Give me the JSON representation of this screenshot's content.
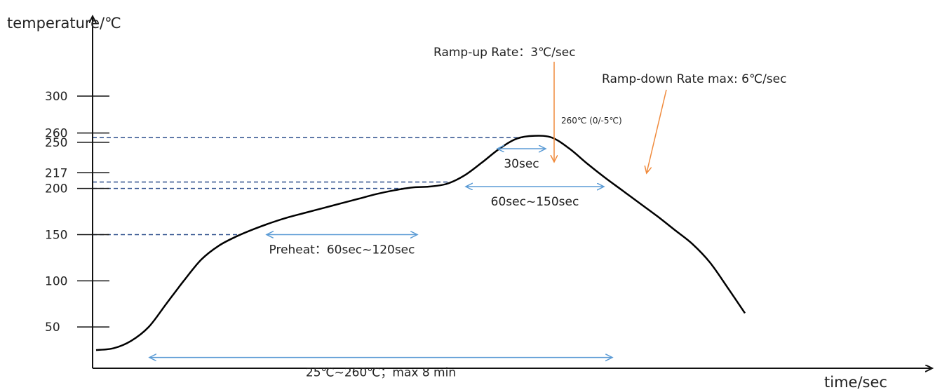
{
  "chart_data": {
    "type": "line",
    "title": "",
    "xlabel": "time/sec",
    "ylabel": "temperature/℃",
    "y_ticks": [
      {
        "label": "300",
        "value": 300
      },
      {
        "label": "260",
        "value": 260
      },
      {
        "label": "250",
        "value": 250
      },
      {
        "label": "217",
        "value": 217
      },
      {
        "label": "200",
        "value": 200
      },
      {
        "label": "150",
        "value": 150
      },
      {
        "label": "100",
        "value": 100
      },
      {
        "label": "50",
        "value": 50
      }
    ],
    "series": [
      {
        "x": [
          0,
          25,
          50,
          75,
          100,
          125,
          150,
          175,
          200,
          225,
          250,
          275,
          300,
          325,
          350,
          375,
          400,
          425,
          450,
          475,
          500,
          525,
          550,
          575,
          600,
          625,
          650,
          675,
          700,
          725,
          750,
          775,
          800,
          825,
          850,
          875,
          900,
          925
        ],
        "values": [
          25,
          27,
          35,
          50,
          75,
          100,
          123,
          138,
          148,
          156,
          163,
          169,
          174,
          179,
          184,
          189,
          194,
          198,
          201,
          202,
          205,
          214,
          228,
          243,
          254,
          257,
          255,
          243,
          227,
          212,
          198,
          184,
          170,
          155,
          140,
          120,
          93,
          65
        ]
      }
    ],
    "reference_lines": [
      {
        "value": 255,
        "label": "260℃ (0/-5℃)"
      },
      {
        "value": 207
      },
      {
        "value": 200
      },
      {
        "value": 150
      }
    ],
    "spans": [
      {
        "label": "30sec",
        "y": 243,
        "x_start": 573,
        "x_end": 640
      },
      {
        "label": "60sec~150sec",
        "y": 202,
        "x_start": 528,
        "x_end": 723
      },
      {
        "label": "Preheat：60sec~120sec",
        "y": 150,
        "x_start": 244,
        "x_end": 457
      },
      {
        "label": "25℃~260℃；max 8 min",
        "y": 17,
        "x_start": 77,
        "x_end": 735
      }
    ],
    "annotations": [
      {
        "label": "Ramp-up Rate：3℃/sec",
        "x": 560,
        "y": 218
      },
      {
        "label": "Ramp-down Rate max: 6℃/sec",
        "x": 699,
        "y": 222
      }
    ]
  }
}
